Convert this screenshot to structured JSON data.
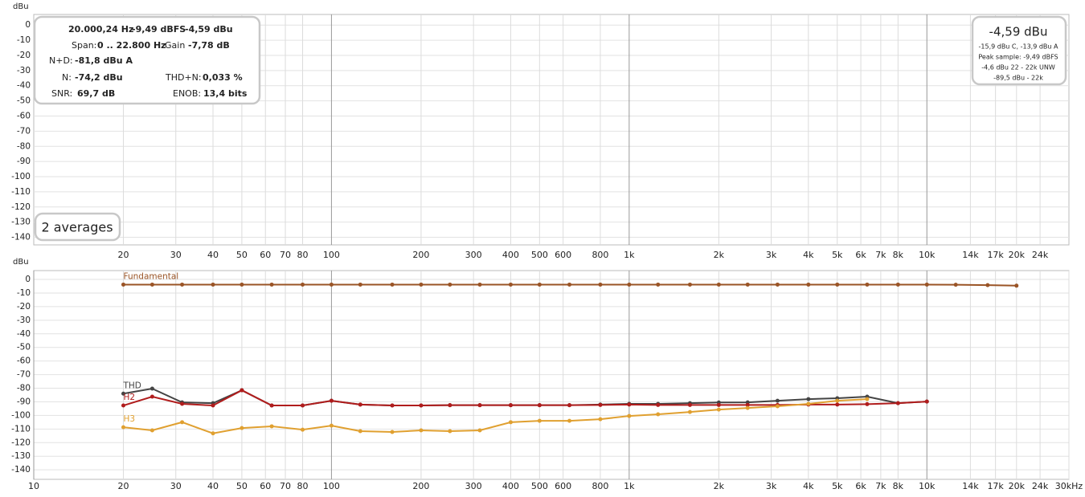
{
  "chart_data": [
    {
      "type": "line",
      "y_label": "dBu",
      "xscale": "log",
      "xlim": [
        10,
        30000
      ],
      "ylim": [
        -145,
        7
      ],
      "xticks": [
        20,
        30,
        40,
        50,
        60,
        70,
        80,
        100,
        200,
        300,
        400,
        500,
        600,
        800,
        {
          "value": 1000,
          "label": "1k"
        },
        {
          "value": 2000,
          "label": "2k"
        },
        {
          "value": 3000,
          "label": "3k"
        },
        {
          "value": 4000,
          "label": "4k"
        },
        {
          "value": 5000,
          "label": "5k"
        },
        {
          "value": 6000,
          "label": "6k"
        },
        {
          "value": 7000,
          "label": "7k"
        },
        {
          "value": 8000,
          "label": "8k"
        },
        {
          "value": 10000,
          "label": "10k"
        },
        {
          "value": 14000,
          "label": "14k"
        },
        {
          "value": 17000,
          "label": "17k"
        },
        {
          "value": 20000,
          "label": "20k"
        },
        {
          "value": 24000,
          "label": "24k"
        }
      ],
      "yticks": [
        0,
        -10,
        -20,
        -30,
        -40,
        -50,
        -60,
        -70,
        -80,
        -90,
        -100,
        -110,
        -120,
        -130,
        -140
      ],
      "grid": true,
      "x": [],
      "series": []
    },
    {
      "type": "line",
      "y_label": "dBu",
      "xscale": "log",
      "xlim": [
        10,
        30000
      ],
      "ylim": [
        -147,
        6.5
      ],
      "xticks": [
        10,
        20,
        30,
        40,
        50,
        60,
        70,
        80,
        100,
        200,
        300,
        400,
        500,
        600,
        800,
        {
          "value": 1000,
          "label": "1k"
        },
        {
          "value": 2000,
          "label": "2k"
        },
        {
          "value": 3000,
          "label": "3k"
        },
        {
          "value": 4000,
          "label": "4k"
        },
        {
          "value": 5000,
          "label": "5k"
        },
        {
          "value": 6000,
          "label": "6k"
        },
        {
          "value": 7000,
          "label": "7k"
        },
        {
          "value": 8000,
          "label": "8k"
        },
        {
          "value": 10000,
          "label": "10k"
        },
        {
          "value": 14000,
          "label": "14k"
        },
        {
          "value": 17000,
          "label": "17k"
        },
        {
          "value": 20000,
          "label": "20k"
        },
        {
          "value": 24000,
          "label": "24k"
        },
        {
          "value": 30000,
          "label": "30kHz"
        }
      ],
      "yticks": [
        0,
        -10,
        -20,
        -30,
        -40,
        -50,
        -60,
        -70,
        -80,
        -90,
        -100,
        -110,
        -120,
        -130,
        -140
      ],
      "grid": true,
      "x": [
        20,
        25,
        31.5,
        40,
        50,
        63,
        80,
        100,
        125,
        160,
        200,
        250,
        315,
        400,
        500,
        630,
        800,
        1000,
        1250,
        1600,
        2000,
        2500,
        3150,
        4000,
        5000,
        6300,
        8000,
        10000,
        12500,
        16000,
        20000
      ],
      "series": [
        {
          "name": "Fundamental",
          "color": "#9a5426",
          "values": [
            -3.8,
            -3.8,
            -3.8,
            -3.8,
            -3.8,
            -3.8,
            -3.8,
            -3.8,
            -3.8,
            -3.8,
            -3.8,
            -3.8,
            -3.8,
            -3.8,
            -3.8,
            -3.8,
            -3.8,
            -3.8,
            -3.8,
            -3.8,
            -3.8,
            -3.8,
            -3.8,
            -3.8,
            -3.8,
            -3.8,
            -3.8,
            -3.8,
            -3.9,
            -4.2,
            -4.6
          ]
        },
        {
          "name": "THD",
          "color": "#444444",
          "values": [
            -84,
            -80.3,
            -90.4,
            -91,
            -81.5,
            -92.7,
            -92.7,
            -89.2,
            -92,
            -92.7,
            -92.7,
            -92.5,
            -92.5,
            -92.5,
            -92.5,
            -92.5,
            -92,
            -91.5,
            -91.5,
            -91,
            -90.5,
            -90.4,
            -89.2,
            -88,
            -87.4,
            -86.2,
            -91,
            -89.8,
            null,
            null,
            null
          ]
        },
        {
          "name": "H2",
          "color": "#b01c1c",
          "values": [
            -92.7,
            -86.2,
            -91.5,
            -92.7,
            -81.5,
            -92.7,
            -92.7,
            -89.2,
            -92,
            -92.7,
            -92.7,
            -92.5,
            -92.5,
            -92.5,
            -92.5,
            -92.5,
            -92.3,
            -92,
            -92.3,
            -92.3,
            -92.3,
            -92.3,
            -92.3,
            -92,
            -92,
            -91.7,
            -91,
            -89.8,
            null,
            null,
            null
          ]
        },
        {
          "name": "H3",
          "color": "#e0a030",
          "values": [
            -108.7,
            -111,
            -105,
            -113.2,
            -109.3,
            -108,
            -110.5,
            -107.5,
            -111.6,
            -112.2,
            -111,
            -111.6,
            -111,
            -105,
            -104,
            -104,
            -102.8,
            -100.4,
            -99.2,
            -97.5,
            -95.7,
            -94.5,
            -93.3,
            -91.5,
            -89.2,
            -88,
            null,
            null,
            null,
            null,
            null
          ]
        }
      ]
    }
  ],
  "readout": {
    "row1": [
      "20.000,24 Hz",
      "-9,49 dBFS",
      "-4,59 dBu"
    ],
    "row2": [
      "Span:",
      "0 .. 22.800 Hz",
      "Gain",
      "-7,78 dB"
    ],
    "row3": [
      "N+D:",
      "-81,8 dBu A"
    ],
    "row4": [
      "N:",
      "-74,2 dBu",
      "THD+N:",
      "0,033 %"
    ],
    "row5": [
      "SNR:",
      "69,7 dB",
      "ENOB:",
      "13,4 bits"
    ]
  },
  "level_box": {
    "main": "-4,59 dBu",
    "lines": [
      "-15,9 dBu C, -13,9 dBu A",
      "Peak sample: -9,49 dBFS",
      "-4,6 dBu 22 - 22k UNW",
      "-89,5 dBu - 22k"
    ]
  },
  "averages": "2 averages"
}
